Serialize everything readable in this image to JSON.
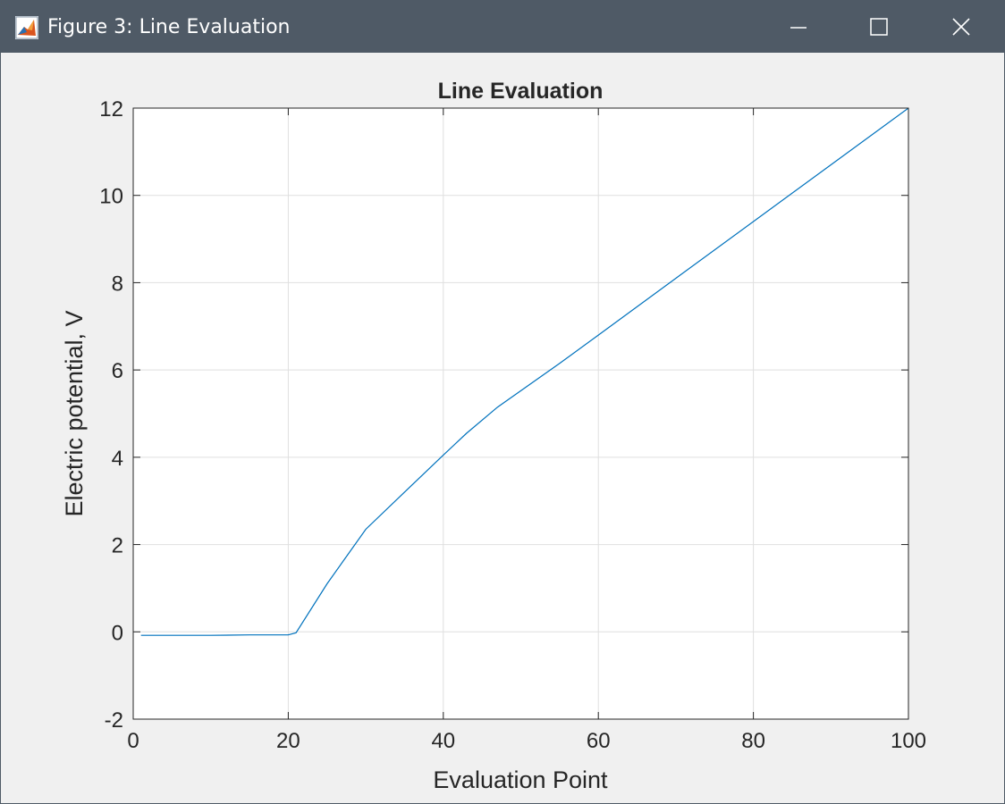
{
  "window": {
    "title": "Figure 3: Line Evaluation",
    "icon": "matlab-figure-icon",
    "controls": {
      "minimize_icon": "minimize-icon",
      "maximize_icon": "maximize-icon",
      "close_icon": "close-icon"
    },
    "titlebar_color": "#4f5a66"
  },
  "chart_data": {
    "type": "line",
    "title": "Line Evaluation",
    "xlabel": "Evaluation Point",
    "ylabel": "Electric potential, V",
    "xlim": [
      0,
      100
    ],
    "ylim": [
      -2,
      12
    ],
    "xticks": [
      "0",
      "20",
      "40",
      "60",
      "80",
      "100"
    ],
    "yticks": [
      "-2",
      "0",
      "2",
      "4",
      "6",
      "8",
      "10",
      "12"
    ],
    "grid": true,
    "series": [
      {
        "color": "#0072bd",
        "x": [
          1,
          5,
          10,
          15,
          20,
          21,
          25,
          30,
          35,
          40,
          43,
          47,
          55,
          60,
          70,
          80,
          90,
          100
        ],
        "y": [
          -0.08,
          -0.08,
          -0.08,
          -0.07,
          -0.07,
          -0.02,
          1.1,
          2.35,
          3.2,
          4.05,
          4.55,
          5.15,
          6.15,
          6.8,
          8.1,
          9.4,
          10.7,
          12.0
        ]
      }
    ]
  }
}
